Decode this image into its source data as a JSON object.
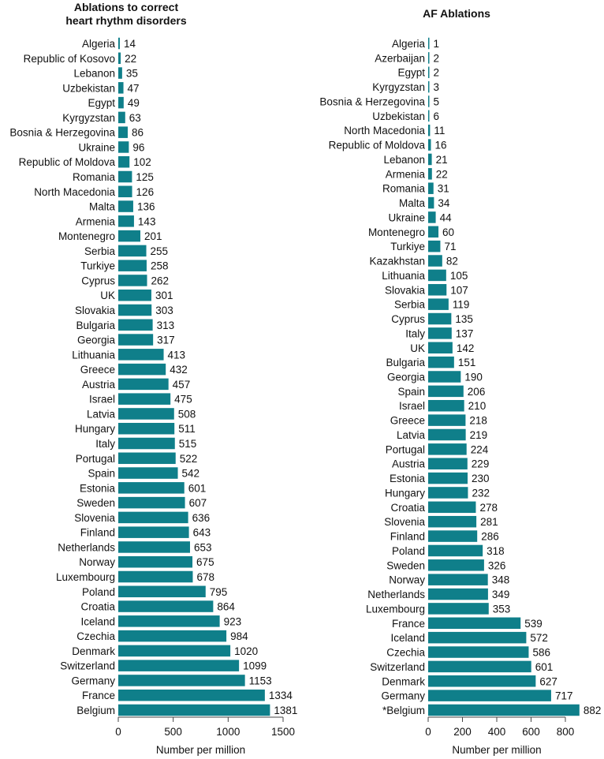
{
  "chart_data": [
    {
      "type": "bar",
      "orientation": "horizontal",
      "title": "Ablations to correct heart rhythm disorders",
      "title_lines": [
        "Ablations to correct",
        "heart rhythm disorders"
      ],
      "xlabel": "Number per million",
      "xlim": [
        0,
        1500
      ],
      "xticks": [
        0,
        500,
        1000,
        1500
      ],
      "color": "#0f7f8a",
      "categories": [
        "Algeria",
        "Republic of Kosovo",
        "Lebanon",
        "Uzbekistan",
        "Egypt",
        "Kyrgyzstan",
        "Bosnia & Herzegovina",
        "Ukraine",
        "Republic of Moldova",
        "Romania",
        "North Macedonia",
        "Malta",
        "Armenia",
        "Montenegro",
        "Serbia",
        "Turkiye",
        "Cyprus",
        "UK",
        "Slovakia",
        "Bulgaria",
        "Georgia",
        "Lithuania",
        "Greece",
        "Austria",
        "Israel",
        "Latvia",
        "Hungary",
        "Italy",
        "Portugal",
        "Spain",
        "Estonia",
        "Sweden",
        "Slovenia",
        "Finland",
        "Netherlands",
        "Norway",
        "Luxembourg",
        "Poland",
        "Croatia",
        "Iceland",
        "Czechia",
        "Denmark",
        "Switzerland",
        "Germany",
        "France",
        "Belgium"
      ],
      "values": [
        14,
        22,
        35,
        47,
        49,
        63,
        86,
        96,
        102,
        125,
        126,
        136,
        143,
        201,
        255,
        258,
        262,
        301,
        303,
        313,
        317,
        413,
        432,
        457,
        475,
        508,
        511,
        515,
        522,
        542,
        601,
        607,
        636,
        643,
        653,
        675,
        678,
        795,
        864,
        923,
        984,
        1020,
        1099,
        1153,
        1334,
        1381
      ]
    },
    {
      "type": "bar",
      "orientation": "horizontal",
      "title": "AF Ablations",
      "title_lines": [
        "AF Ablations"
      ],
      "xlabel": "Number per million",
      "xlim": [
        0,
        800
      ],
      "xticks": [
        0,
        200,
        400,
        600,
        800
      ],
      "color": "#0f7f8a",
      "categories": [
        "Algeria",
        "Azerbaijan",
        "Egypt",
        "Kyrgyzstan",
        "Bosnia & Herzegovina",
        "Uzbekistan",
        "North Macedonia",
        "Republic of Moldova",
        "Lebanon",
        "Armenia",
        "Romania",
        "Malta",
        "Ukraine",
        "Montenegro",
        "Turkiye",
        "Kazakhstan",
        "Lithuania",
        "Slovakia",
        "Serbia",
        "Cyprus",
        "Italy",
        "UK",
        "Bulgaria",
        "Georgia",
        "Spain",
        "Israel",
        "Greece",
        "Latvia",
        "Portugal",
        "Austria",
        "Estonia",
        "Hungary",
        "Croatia",
        "Slovenia",
        "Finland",
        "Poland",
        "Sweden",
        "Norway",
        "Netherlands",
        "Luxembourg",
        "France",
        "Iceland",
        "Czechia",
        "Switzerland",
        "Denmark",
        "Germany",
        "*Belgium"
      ],
      "values": [
        1,
        2,
        2,
        3,
        5,
        6,
        11,
        16,
        21,
        22,
        31,
        34,
        44,
        60,
        71,
        82,
        105,
        107,
        119,
        135,
        137,
        142,
        151,
        190,
        206,
        210,
        218,
        219,
        224,
        229,
        230,
        232,
        278,
        281,
        286,
        318,
        326,
        348,
        349,
        353,
        539,
        572,
        586,
        601,
        627,
        717,
        882
      ]
    }
  ]
}
